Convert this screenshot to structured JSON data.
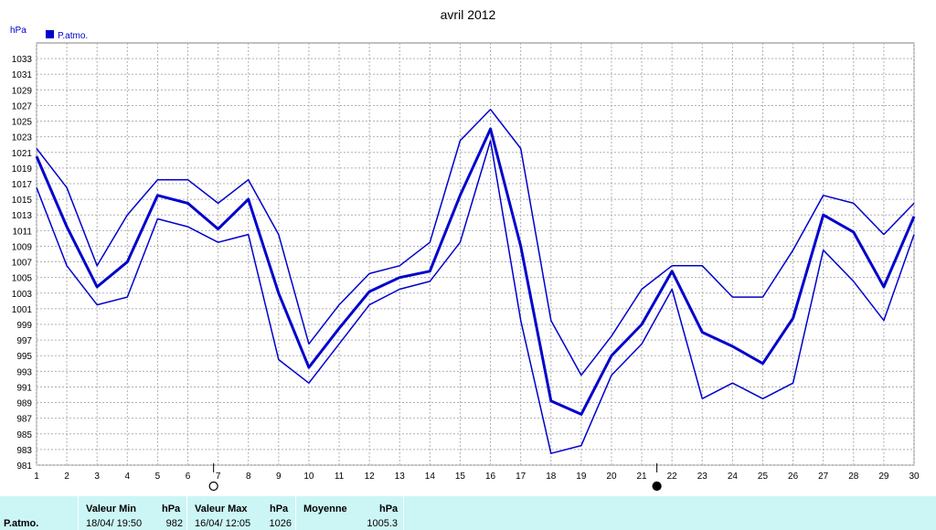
{
  "chart_data": {
    "type": "line",
    "title": "avril 2012",
    "ylabel": "hPa",
    "legend": {
      "label": "P.atmo.",
      "color": "#0000cc",
      "placement": "top-left"
    },
    "x": [
      1,
      2,
      3,
      4,
      5,
      6,
      7,
      8,
      9,
      10,
      11,
      12,
      13,
      14,
      15,
      16,
      17,
      18,
      19,
      20,
      21,
      22,
      23,
      24,
      25,
      26,
      27,
      28,
      29,
      30
    ],
    "ylim": [
      981,
      1035
    ],
    "yticks": [
      981,
      983,
      985,
      987,
      989,
      991,
      993,
      995,
      997,
      999,
      1001,
      1003,
      1005,
      1007,
      1009,
      1011,
      1013,
      1015,
      1017,
      1019,
      1021,
      1023,
      1025,
      1027,
      1029,
      1031,
      1033
    ],
    "grid": true,
    "series": [
      {
        "role": "max",
        "values": [
          1021.5,
          1016.5,
          1006.5,
          1013,
          1017.5,
          1017.5,
          1014.5,
          1017.5,
          1010.5,
          996.5,
          1001.5,
          1005.5,
          1006.5,
          1009.5,
          1022.5,
          1026.5,
          1021.5,
          999.5,
          992.5,
          997.5,
          1003.5,
          1006.5,
          1006.5,
          1002.5,
          1002.5,
          1008.5,
          1015.5,
          1014.5,
          1010.5,
          1014.5
        ]
      },
      {
        "role": "mean",
        "values": [
          1020.5,
          1011.5,
          1003.8,
          1007,
          1015.5,
          1014.5,
          1011.2,
          1015,
          1003,
          993.5,
          998.5,
          1003.2,
          1005,
          1005.8,
          1015.5,
          1024,
          1009,
          989.2,
          987.5,
          995,
          999,
          1005.8,
          998,
          996.2,
          994,
          999.8,
          1013,
          1010.8,
          1003.8,
          1012.8
        ]
      },
      {
        "role": "min",
        "values": [
          1016.5,
          1006.5,
          1001.5,
          1002.5,
          1012.5,
          1011.5,
          1009.5,
          1010.5,
          994.5,
          991.5,
          996.5,
          1001.5,
          1003.5,
          1004.5,
          1009.5,
          1022.5,
          999.5,
          982.5,
          983.5,
          992.5,
          996.5,
          1003.5,
          989.5,
          991.5,
          989.5,
          991.5,
          1008.5,
          1004.5,
          999.5,
          1010.5
        ]
      }
    ],
    "moon_markers": [
      {
        "day": 6.85,
        "phase": "new",
        "symbol": "○"
      },
      {
        "day": 21.5,
        "phase": "full",
        "symbol": "●"
      }
    ],
    "line_color": "#0000cc"
  },
  "summary": {
    "row_label": "P.atmo.",
    "min": {
      "header": "Valeur Min",
      "unit": "hPa",
      "date": "18/04/  19:50",
      "value": "982"
    },
    "max": {
      "header": "Valeur Max",
      "unit": "hPa",
      "date": "16/04/  12:05",
      "value": "1026"
    },
    "mean": {
      "header": "Moyenne",
      "unit": "hPa",
      "value": "1005.3"
    }
  }
}
